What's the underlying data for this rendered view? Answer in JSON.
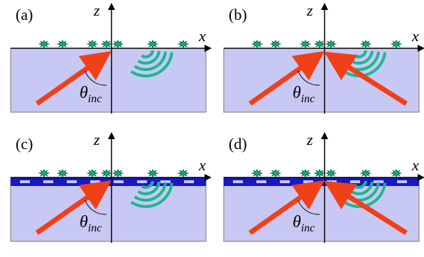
{
  "panels": [
    {
      "label": "(a)",
      "z_axis": "z",
      "x_axis": "x",
      "angle": {
        "symbol": "θ",
        "subscript": "inc"
      }
    },
    {
      "label": "(b)",
      "z_axis": "z",
      "x_axis": "x",
      "angle": {
        "symbol": "θ",
        "subscript": "inc"
      }
    },
    {
      "label": "(c)",
      "z_axis": "z",
      "x_axis": "x",
      "angle": {
        "symbol": "θ",
        "subscript": "inc"
      }
    },
    {
      "label": "(d)",
      "z_axis": "z",
      "x_axis": "x",
      "angle": {
        "symbol": "θ",
        "subscript": "inc"
      }
    }
  ]
}
